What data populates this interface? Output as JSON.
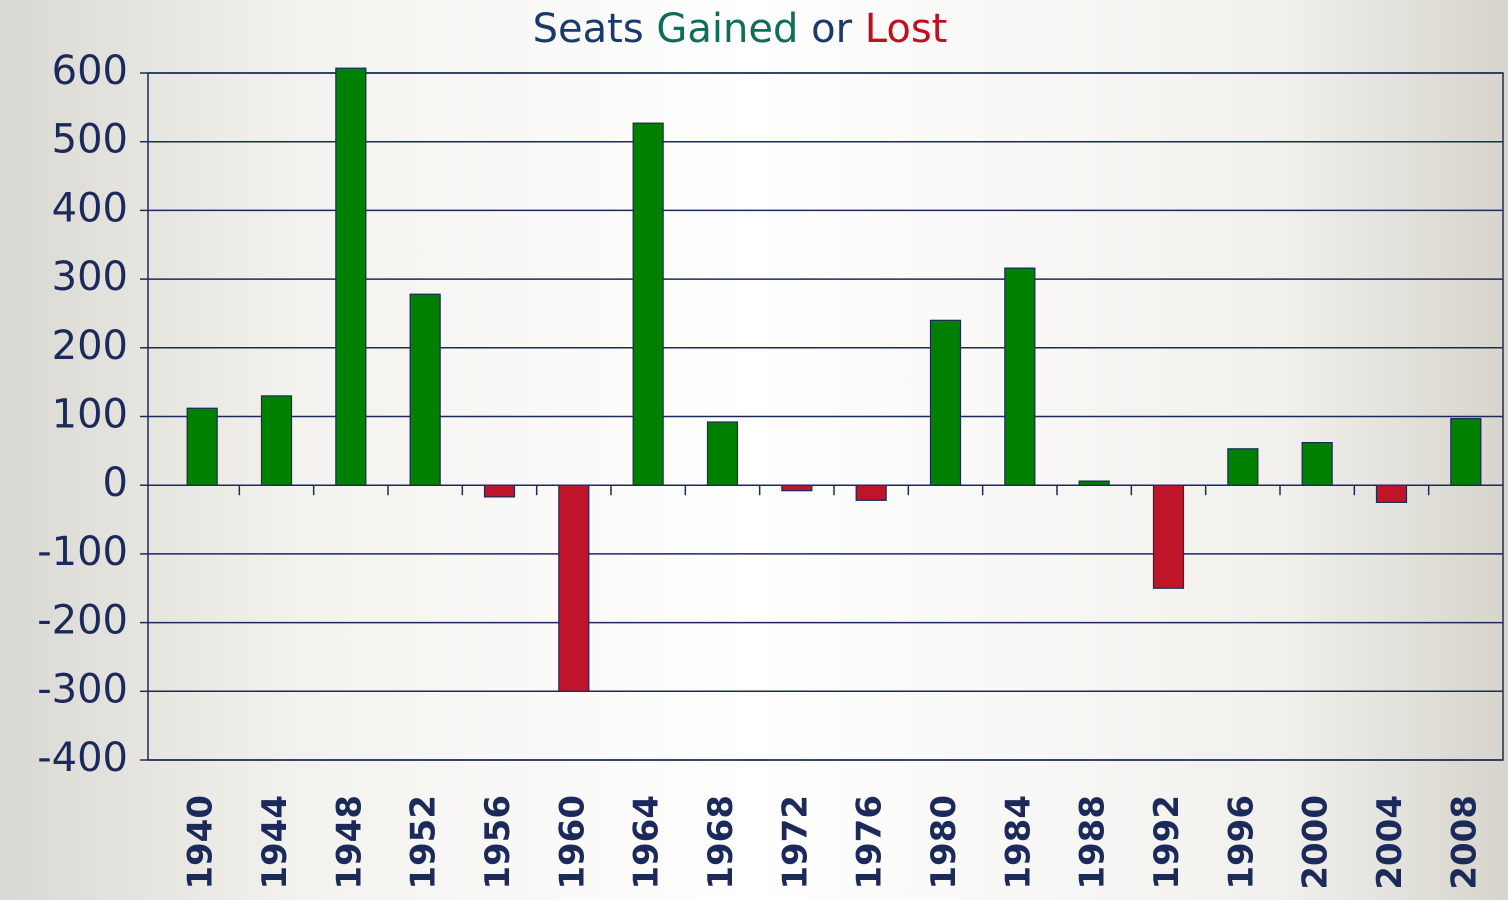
{
  "chart_data": {
    "type": "bar",
    "title_parts": [
      {
        "text": "Seats",
        "color": "#1b3a6b"
      },
      {
        "text": "Gained",
        "color": "#0f6e5a"
      },
      {
        "text": "or",
        "color": "#1b3a6b"
      },
      {
        "text": "Lost",
        "color": "#c0101e"
      }
    ],
    "categories": [
      "1940",
      "1944",
      "1948",
      "1952",
      "1956",
      "1960",
      "1964",
      "1968",
      "1972",
      "1976",
      "1980",
      "1984",
      "1988",
      "1992",
      "1996",
      "2000",
      "2004",
      "2008"
    ],
    "values": [
      112,
      130,
      607,
      278,
      -17,
      -300,
      527,
      92,
      -8,
      -22,
      240,
      316,
      6,
      -150,
      53,
      62,
      -25,
      97
    ],
    "positive_color": "#008000",
    "negative_color": "#c0142b",
    "ylim": [
      -400,
      600
    ],
    "yticks": [
      -400,
      -300,
      -200,
      -100,
      0,
      100,
      200,
      300,
      400,
      500,
      600
    ],
    "grid": true
  }
}
